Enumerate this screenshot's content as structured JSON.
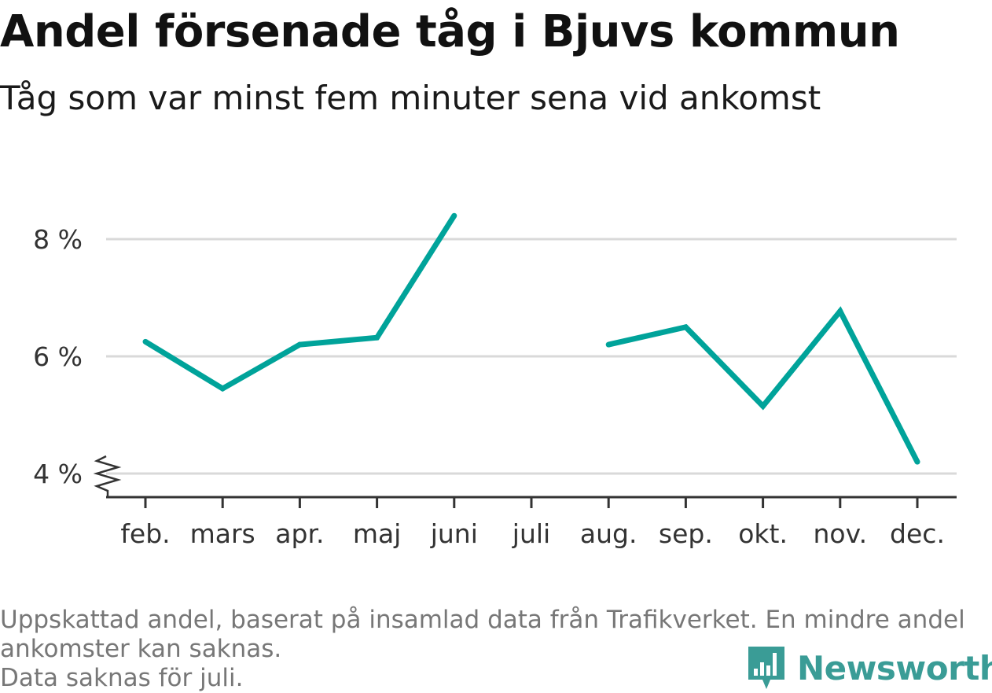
{
  "chart_data": {
    "type": "line",
    "title": "Andel försenade tåg i Bjuvs kommun",
    "subtitle": "Tåg som var minst fem minuter sena vid ankomst",
    "categories": [
      "feb.",
      "mars",
      "apr.",
      "maj",
      "juni",
      "juli",
      "aug.",
      "sep.",
      "okt.",
      "nov.",
      "dec."
    ],
    "values": [
      6.25,
      5.45,
      6.2,
      6.32,
      8.4,
      null,
      6.2,
      6.5,
      5.15,
      6.77,
      4.2
    ],
    "yticks": [
      4,
      6,
      8
    ],
    "ytick_labels": [
      "4 %",
      "6 %",
      "8 %"
    ],
    "ylim": [
      3.6,
      9.1
    ],
    "grid": true,
    "axis_break": true,
    "line_color": "#00a39a"
  },
  "footnote": {
    "line1": "Uppskattad andel, baserat på insamlad data från Trafikverket. En mindre andel",
    "line2": "ankomster kan saknas.",
    "line3": "Data saknas för juli."
  },
  "brand": {
    "name": "Newsworthy",
    "icon": "newsworthy-logo-icon",
    "color": "#3a9c96"
  }
}
